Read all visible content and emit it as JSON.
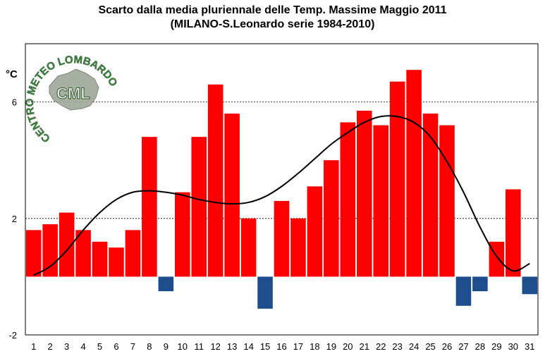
{
  "chart_data": {
    "type": "bar",
    "title": "Scarto dalla media pluriennale delle Temp. Massime Maggio 2011",
    "subtitle": "(MILANO-S.Leonardo serie 1984-2010)",
    "ylabel": "°C",
    "xlabel": "",
    "ylim": [
      -2,
      8
    ],
    "yticks": [
      -2,
      2,
      6
    ],
    "grid": "dotted lines at 2 and 6",
    "legend": "none",
    "categories": [
      "1",
      "2",
      "3",
      "4",
      "5",
      "6",
      "7",
      "8",
      "9",
      "10",
      "11",
      "12",
      "13",
      "14",
      "15",
      "16",
      "17",
      "18",
      "19",
      "20",
      "21",
      "22",
      "23",
      "24",
      "25",
      "26",
      "27",
      "28",
      "29",
      "30",
      "31"
    ],
    "values": [
      1.6,
      1.8,
      2.2,
      1.6,
      1.2,
      1.0,
      1.6,
      4.8,
      -0.5,
      2.9,
      4.8,
      6.6,
      5.6,
      2.0,
      -1.1,
      2.6,
      2.0,
      3.1,
      4.0,
      5.3,
      5.7,
      5.2,
      6.7,
      7.1,
      5.6,
      5.2,
      -1.0,
      -0.5,
      1.2,
      3.0,
      -0.6
    ],
    "trend": [
      0.05,
      0.35,
      0.9,
      1.6,
      2.2,
      2.65,
      2.9,
      2.95,
      2.9,
      2.8,
      2.65,
      2.55,
      2.5,
      2.55,
      2.75,
      3.1,
      3.55,
      4.05,
      4.55,
      4.95,
      5.3,
      5.5,
      5.5,
      5.3,
      4.8,
      3.95,
      2.9,
      1.7,
      0.7,
      0.2,
      0.45
    ],
    "colors": {
      "positive": "#ff0000",
      "negative": "#1f4e8c",
      "trend": "#000000"
    }
  },
  "watermark": {
    "text": "CENTRO METEO LOMBARDO",
    "abbr": "CML"
  }
}
